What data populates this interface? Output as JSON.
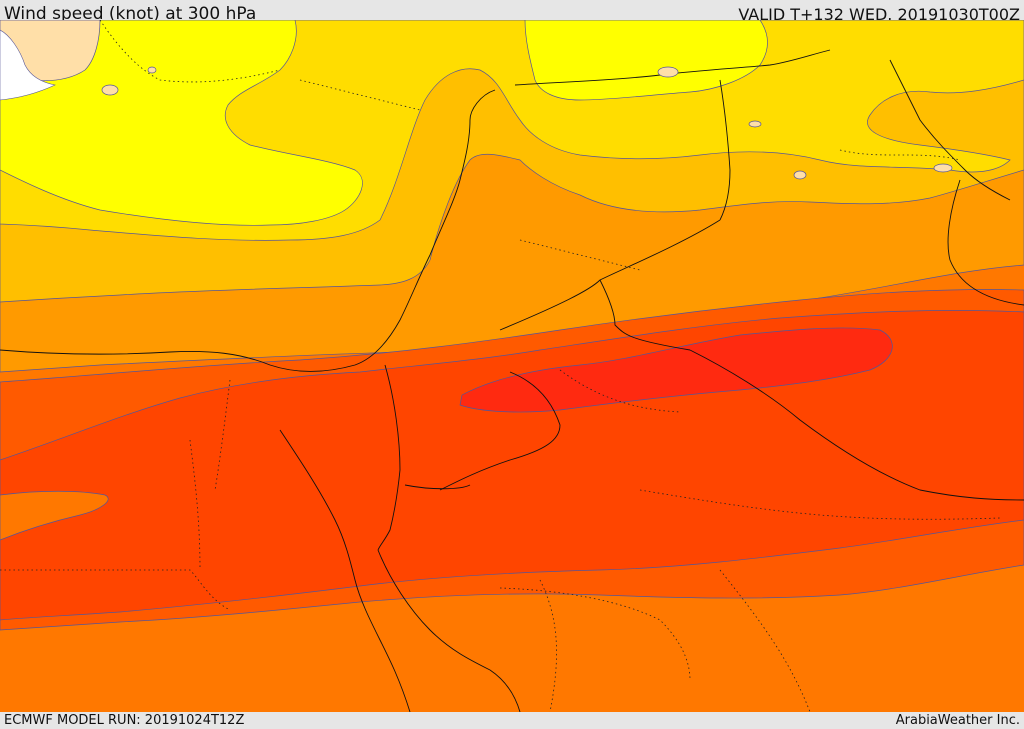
{
  "header": {
    "title": "Wind speed (knot) at 300 hPa",
    "valid_time": "VALID T+132 WED. 20191030T00Z"
  },
  "footer": {
    "model_run": "ECMWF MODEL RUN: 20191024T12Z",
    "credit": "ArabiaWeather Inc."
  },
  "map": {
    "variable": "Wind speed at 300 hPa",
    "unit": "knot",
    "fill_colors": {
      "lowest": "#ffdfa8",
      "band_1": "#ffff00",
      "band_2": "#ffdd00",
      "band_3": "#ffbf00",
      "band_4": "#ff9a00",
      "band_5": "#ff7800",
      "band_6": "#ff5a00",
      "band_7": "#ff4500",
      "band_8": "#ff2a10",
      "missing": "#ffffff"
    },
    "contour_color": "#555599",
    "border_color": "#111111"
  }
}
